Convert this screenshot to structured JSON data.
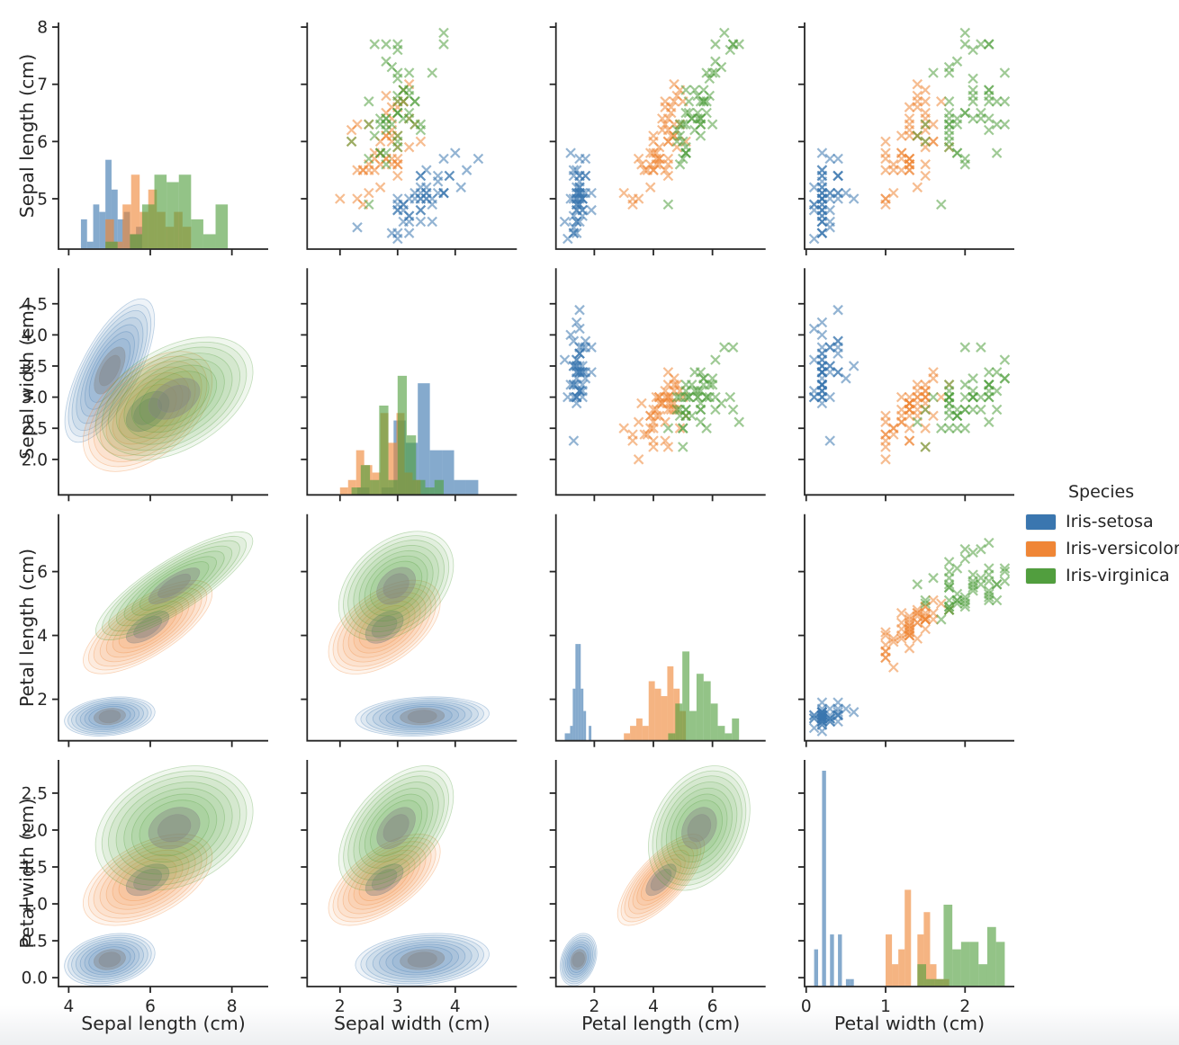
{
  "figure": {
    "background": "#ffffff",
    "bottom_band_color": "#edeff1",
    "text_color": "#262626",
    "spine_color": "#262626"
  },
  "chart_data": {
    "type": "scatter",
    "subtype": "pair-plot-matrix: scatter (x markers) upper triangle, filled KDE contours lower triangle, per-species histograms on diagonal",
    "marker": "x",
    "grid": "off",
    "legend_position": "right",
    "legend": {
      "title": "Species",
      "entries": [
        {
          "label": "Iris-setosa",
          "color": "#3A76AF"
        },
        {
          "label": "Iris-versicolor",
          "color": "#EF8636"
        },
        {
          "label": "Iris-virginica",
          "color": "#519E3E"
        }
      ]
    },
    "variables": [
      {
        "key": "sepal_length",
        "label": "Sepal length (cm)",
        "col_range": [
          3.75,
          8.89
        ],
        "row_range": [
          4.12,
          8.08
        ],
        "col_ticks": [
          4,
          6,
          8
        ],
        "col_tick_labels": [
          "4",
          "6",
          "8"
        ],
        "row_ticks": [
          5,
          6,
          7,
          8
        ],
        "row_tick_labels": [
          "5",
          "6",
          "7",
          "8"
        ]
      },
      {
        "key": "sepal_width",
        "label": "Sepal width (cm)",
        "col_range": [
          1.43,
          5.07
        ],
        "row_range": [
          1.43,
          5.07
        ],
        "col_ticks": [
          2,
          3,
          4
        ],
        "col_tick_labels": [
          "2",
          "3",
          "4"
        ],
        "row_ticks": [
          2.0,
          2.5,
          3.0,
          3.5,
          4.0,
          4.5
        ],
        "row_tick_labels": [
          "2.0",
          "2.5",
          "3.0",
          "3.5",
          "4.0",
          "4.5"
        ]
      },
      {
        "key": "petal_length",
        "label": "Petal length (cm)",
        "col_range": [
          0.7,
          7.8
        ],
        "row_range": [
          0.7,
          7.8
        ],
        "col_ticks": [
          2,
          4,
          6
        ],
        "col_tick_labels": [
          "2",
          "4",
          "6"
        ],
        "row_ticks": [
          2,
          4,
          6
        ],
        "row_tick_labels": [
          "2",
          "4",
          "6"
        ]
      },
      {
        "key": "petal_width",
        "label": "Petal width (cm)",
        "col_range": [
          -0.02,
          2.62
        ],
        "row_range": [
          -0.12,
          2.95
        ],
        "col_ticks": [
          0,
          1,
          2
        ],
        "col_tick_labels": [
          "0",
          "1",
          "2"
        ],
        "row_ticks": [
          0.0,
          0.5,
          1.0,
          1.5,
          2.0,
          2.5
        ],
        "row_tick_labels": [
          "0.0",
          "0.5",
          "1.0",
          "1.5",
          "2.0",
          "2.5"
        ]
      }
    ],
    "series": [
      {
        "name": "Iris-setosa",
        "color": "#3A76AF",
        "points": [
          [
            5.1,
            3.5,
            1.4,
            0.2
          ],
          [
            4.9,
            3.0,
            1.4,
            0.2
          ],
          [
            4.7,
            3.2,
            1.3,
            0.2
          ],
          [
            4.6,
            3.1,
            1.5,
            0.2
          ],
          [
            5.0,
            3.6,
            1.4,
            0.2
          ],
          [
            5.4,
            3.9,
            1.7,
            0.4
          ],
          [
            4.6,
            3.4,
            1.4,
            0.3
          ],
          [
            5.0,
            3.4,
            1.5,
            0.2
          ],
          [
            4.4,
            2.9,
            1.4,
            0.2
          ],
          [
            4.9,
            3.1,
            1.5,
            0.1
          ],
          [
            5.4,
            3.7,
            1.5,
            0.2
          ],
          [
            4.8,
            3.4,
            1.6,
            0.2
          ],
          [
            4.8,
            3.0,
            1.4,
            0.1
          ],
          [
            4.3,
            3.0,
            1.1,
            0.1
          ],
          [
            5.8,
            4.0,
            1.2,
            0.2
          ],
          [
            5.7,
            4.4,
            1.5,
            0.4
          ],
          [
            5.4,
            3.9,
            1.3,
            0.4
          ],
          [
            5.1,
            3.5,
            1.4,
            0.3
          ],
          [
            5.7,
            3.8,
            1.7,
            0.3
          ],
          [
            5.1,
            3.8,
            1.5,
            0.3
          ],
          [
            5.4,
            3.4,
            1.7,
            0.2
          ],
          [
            5.1,
            3.7,
            1.5,
            0.4
          ],
          [
            4.6,
            3.6,
            1.0,
            0.2
          ],
          [
            5.1,
            3.3,
            1.7,
            0.5
          ],
          [
            4.8,
            3.4,
            1.9,
            0.2
          ],
          [
            5.0,
            3.0,
            1.6,
            0.2
          ],
          [
            5.0,
            3.4,
            1.6,
            0.4
          ],
          [
            5.2,
            3.5,
            1.5,
            0.2
          ],
          [
            5.2,
            3.4,
            1.4,
            0.2
          ],
          [
            4.7,
            3.2,
            1.6,
            0.2
          ],
          [
            4.8,
            3.1,
            1.6,
            0.2
          ],
          [
            5.4,
            3.4,
            1.5,
            0.4
          ],
          [
            5.2,
            4.1,
            1.5,
            0.1
          ],
          [
            5.5,
            4.2,
            1.4,
            0.2
          ],
          [
            4.9,
            3.1,
            1.5,
            0.2
          ],
          [
            5.0,
            3.2,
            1.2,
            0.2
          ],
          [
            5.5,
            3.5,
            1.3,
            0.2
          ],
          [
            4.9,
            3.6,
            1.4,
            0.1
          ],
          [
            4.4,
            3.0,
            1.3,
            0.2
          ],
          [
            5.1,
            3.4,
            1.5,
            0.2
          ],
          [
            5.0,
            3.5,
            1.3,
            0.3
          ],
          [
            4.5,
            2.3,
            1.3,
            0.3
          ],
          [
            4.4,
            3.2,
            1.3,
            0.2
          ],
          [
            5.0,
            3.5,
            1.6,
            0.6
          ],
          [
            5.1,
            3.8,
            1.9,
            0.4
          ],
          [
            4.8,
            3.0,
            1.4,
            0.3
          ],
          [
            5.1,
            3.8,
            1.6,
            0.2
          ],
          [
            4.6,
            3.2,
            1.4,
            0.2
          ],
          [
            5.3,
            3.7,
            1.5,
            0.2
          ],
          [
            5.0,
            3.3,
            1.4,
            0.2
          ]
        ]
      },
      {
        "name": "Iris-versicolor",
        "color": "#EF8636",
        "points": [
          [
            7.0,
            3.2,
            4.7,
            1.4
          ],
          [
            6.4,
            3.2,
            4.5,
            1.5
          ],
          [
            6.9,
            3.1,
            4.9,
            1.5
          ],
          [
            5.5,
            2.3,
            4.0,
            1.3
          ],
          [
            6.5,
            2.8,
            4.6,
            1.5
          ],
          [
            5.7,
            2.8,
            4.5,
            1.3
          ],
          [
            6.3,
            3.3,
            4.7,
            1.6
          ],
          [
            4.9,
            2.4,
            3.3,
            1.0
          ],
          [
            6.6,
            2.9,
            4.6,
            1.3
          ],
          [
            5.2,
            2.7,
            3.9,
            1.4
          ],
          [
            5.0,
            2.0,
            3.5,
            1.0
          ],
          [
            5.9,
            3.0,
            4.2,
            1.5
          ],
          [
            6.0,
            2.2,
            4.0,
            1.0
          ],
          [
            6.1,
            2.9,
            4.7,
            1.4
          ],
          [
            5.6,
            2.9,
            3.6,
            1.3
          ],
          [
            6.7,
            3.1,
            4.4,
            1.4
          ],
          [
            5.6,
            3.0,
            4.5,
            1.5
          ],
          [
            5.8,
            2.7,
            4.1,
            1.0
          ],
          [
            6.2,
            2.2,
            4.5,
            1.5
          ],
          [
            5.6,
            2.5,
            3.9,
            1.1
          ],
          [
            5.9,
            3.2,
            4.8,
            1.8
          ],
          [
            6.1,
            2.8,
            4.0,
            1.3
          ],
          [
            6.3,
            2.5,
            4.9,
            1.5
          ],
          [
            6.1,
            2.8,
            4.7,
            1.2
          ],
          [
            6.4,
            2.9,
            4.3,
            1.3
          ],
          [
            6.6,
            3.0,
            4.4,
            1.4
          ],
          [
            6.8,
            2.8,
            4.8,
            1.4
          ],
          [
            6.7,
            3.0,
            5.0,
            1.7
          ],
          [
            6.0,
            2.9,
            4.5,
            1.5
          ],
          [
            5.7,
            2.6,
            3.5,
            1.0
          ],
          [
            5.5,
            2.4,
            3.8,
            1.1
          ],
          [
            5.5,
            2.4,
            3.7,
            1.0
          ],
          [
            5.8,
            2.7,
            3.9,
            1.2
          ],
          [
            6.0,
            2.7,
            5.1,
            1.6
          ],
          [
            5.4,
            3.0,
            4.5,
            1.5
          ],
          [
            6.0,
            3.4,
            4.5,
            1.6
          ],
          [
            6.7,
            3.1,
            4.7,
            1.5
          ],
          [
            6.3,
            2.3,
            4.4,
            1.3
          ],
          [
            5.6,
            3.0,
            4.1,
            1.3
          ],
          [
            5.5,
            2.5,
            4.0,
            1.3
          ],
          [
            5.5,
            2.6,
            4.4,
            1.2
          ],
          [
            6.1,
            3.0,
            4.6,
            1.4
          ],
          [
            5.8,
            2.6,
            4.0,
            1.2
          ],
          [
            5.0,
            2.3,
            3.3,
            1.0
          ],
          [
            5.6,
            2.7,
            4.2,
            1.3
          ],
          [
            5.7,
            3.0,
            4.2,
            1.2
          ],
          [
            5.7,
            2.9,
            4.2,
            1.3
          ],
          [
            6.2,
            2.9,
            4.3,
            1.3
          ],
          [
            5.1,
            2.5,
            3.0,
            1.1
          ],
          [
            5.7,
            2.8,
            4.1,
            1.3
          ]
        ]
      },
      {
        "name": "Iris-virginica",
        "color": "#519E3E",
        "points": [
          [
            6.3,
            3.3,
            6.0,
            2.5
          ],
          [
            5.8,
            2.7,
            5.1,
            1.9
          ],
          [
            7.1,
            3.0,
            5.9,
            2.1
          ],
          [
            6.3,
            2.9,
            5.6,
            1.8
          ],
          [
            6.5,
            3.0,
            5.8,
            2.2
          ],
          [
            7.6,
            3.0,
            6.6,
            2.1
          ],
          [
            4.9,
            2.5,
            4.5,
            1.7
          ],
          [
            7.3,
            2.9,
            6.3,
            1.8
          ],
          [
            6.7,
            2.5,
            5.8,
            1.8
          ],
          [
            7.2,
            3.6,
            6.1,
            2.5
          ],
          [
            6.5,
            3.2,
            5.1,
            2.0
          ],
          [
            6.4,
            2.7,
            5.3,
            1.9
          ],
          [
            6.8,
            3.0,
            5.5,
            2.1
          ],
          [
            5.7,
            2.5,
            5.0,
            2.0
          ],
          [
            5.8,
            2.8,
            5.1,
            2.4
          ],
          [
            6.4,
            3.2,
            5.3,
            2.3
          ],
          [
            6.5,
            3.0,
            5.5,
            1.8
          ],
          [
            7.7,
            3.8,
            6.7,
            2.2
          ],
          [
            7.7,
            2.6,
            6.9,
            2.3
          ],
          [
            6.0,
            2.2,
            5.0,
            1.5
          ],
          [
            6.9,
            3.2,
            5.7,
            2.3
          ],
          [
            5.6,
            2.8,
            4.9,
            2.0
          ],
          [
            7.7,
            2.8,
            6.7,
            2.0
          ],
          [
            6.3,
            2.7,
            4.9,
            1.8
          ],
          [
            6.7,
            3.3,
            5.7,
            2.1
          ],
          [
            7.2,
            3.2,
            6.0,
            1.8
          ],
          [
            6.2,
            2.8,
            4.8,
            1.8
          ],
          [
            6.1,
            3.0,
            4.9,
            1.8
          ],
          [
            6.4,
            2.8,
            5.6,
            2.1
          ],
          [
            7.2,
            3.0,
            5.8,
            1.6
          ],
          [
            7.4,
            2.8,
            6.1,
            1.9
          ],
          [
            7.9,
            3.8,
            6.4,
            2.0
          ],
          [
            6.4,
            2.8,
            5.6,
            2.2
          ],
          [
            6.3,
            2.8,
            5.1,
            1.5
          ],
          [
            6.1,
            2.6,
            5.6,
            1.4
          ],
          [
            7.7,
            3.0,
            6.1,
            2.3
          ],
          [
            6.3,
            3.4,
            5.6,
            2.4
          ],
          [
            6.4,
            3.1,
            5.5,
            1.8
          ],
          [
            6.0,
            3.0,
            4.8,
            1.8
          ],
          [
            6.9,
            3.1,
            5.4,
            2.1
          ],
          [
            6.7,
            3.1,
            5.6,
            2.4
          ],
          [
            6.9,
            3.1,
            5.1,
            2.3
          ],
          [
            5.8,
            2.7,
            5.1,
            1.9
          ],
          [
            6.8,
            3.2,
            5.9,
            2.3
          ],
          [
            6.7,
            3.3,
            5.7,
            2.5
          ],
          [
            6.7,
            3.0,
            5.2,
            2.3
          ],
          [
            6.3,
            2.5,
            5.0,
            1.9
          ],
          [
            6.5,
            3.0,
            5.2,
            2.0
          ],
          [
            6.2,
            3.4,
            5.4,
            2.3
          ],
          [
            5.9,
            3.0,
            5.1,
            1.8
          ]
        ]
      }
    ]
  }
}
